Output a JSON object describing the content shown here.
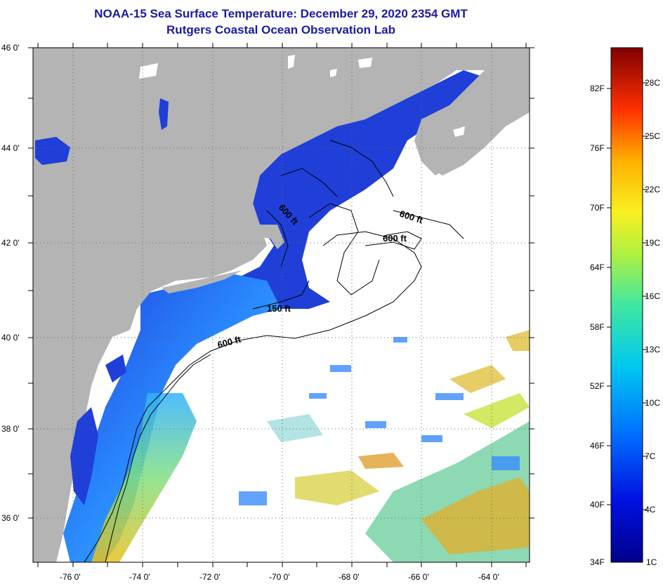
{
  "title": "NOAA-15 Sea Surface Temperature:  December 29, 2020 2354 GMT",
  "subtitle": "Rutgers Coastal Ocean Observation Lab",
  "map": {
    "lat_labels": [
      "46 0'",
      "44 0'",
      "42 0'",
      "40 0'",
      "38 0'",
      "36 0'"
    ],
    "lon_labels": [
      "-76 0'",
      "-74 0'",
      "-72 0'",
      "-70 0'",
      "-68 0'",
      "-66 0'",
      "-64 0'"
    ],
    "contour_labels": [
      "600 ft",
      "600 ft",
      "600 ft",
      "150 ft",
      "600 ft"
    ],
    "colors": {
      "land": "#b4b4b4",
      "cloud": "#ffffff",
      "cold": "#1f3fd8",
      "mid": "#3aa0ff",
      "warm": "#c8e23c"
    }
  },
  "colorbar": {
    "fahrenheit": [
      "82F",
      "76F",
      "70F",
      "64F",
      "58F",
      "52F",
      "46F",
      "40F",
      "34F"
    ],
    "celsius": [
      "28C",
      "25C",
      "22C",
      "19C",
      "16C",
      "13C",
      "10C",
      "7C",
      "4C",
      "1C"
    ]
  }
}
